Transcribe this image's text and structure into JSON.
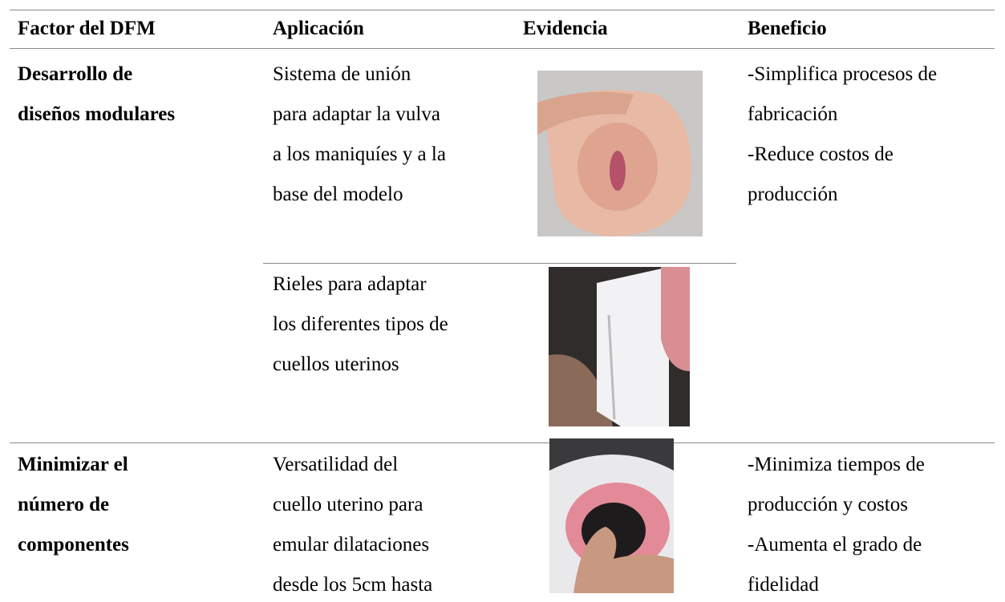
{
  "table": {
    "header": [
      "Factor del DFM",
      "Aplicación",
      "Evidencia",
      "Beneficio"
    ],
    "rows": [
      {
        "factor": [
          "Desarrollo de",
          "diseños modulares"
        ],
        "applications": [
          [
            "Sistema de unión",
            "para adaptar la vulva",
            "a los maniquíes y a la",
            "base del modelo"
          ],
          [
            "Rieles para adaptar",
            "los diferentes tipos de",
            "cuellos uterinos"
          ]
        ],
        "benefit": [
          "-Simplifica procesos de",
          "fabricación",
          "-Reduce costos de",
          "producción"
        ]
      },
      {
        "factor": [
          "Minimizar el",
          "número de",
          "componentes"
        ],
        "applications": [
          [
            "Versatilidad del",
            "cuello uterino para",
            "emular dilataciones",
            "desde los 5cm hasta"
          ]
        ],
        "benefit": [
          "-Minimiza tiempos de",
          "producción y costos",
          "-Aumenta el grado de",
          "fidelidad"
        ]
      }
    ]
  }
}
